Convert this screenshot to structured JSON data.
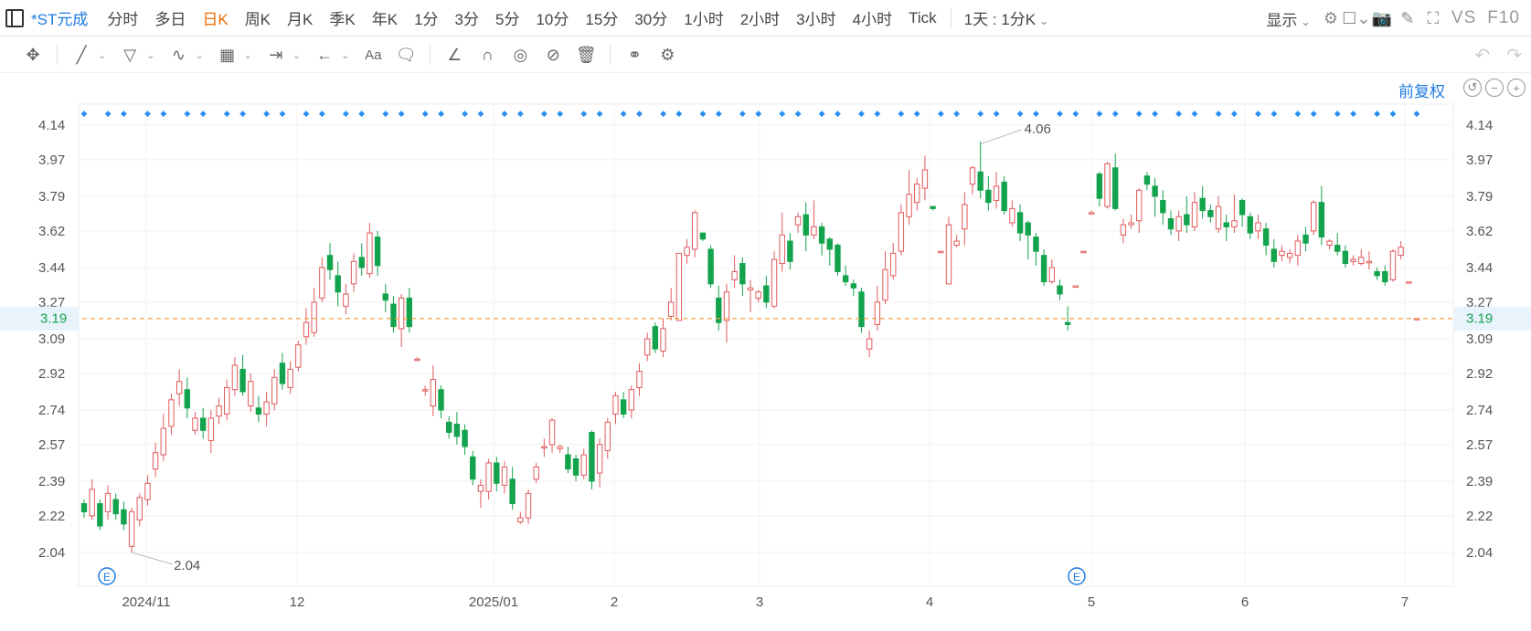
{
  "toolbar": {
    "stock_name": "*ST元成",
    "periods": [
      "分时",
      "多日",
      "日K",
      "周K",
      "月K",
      "季K",
      "年K",
      "1分",
      "3分",
      "5分",
      "10分",
      "15分",
      "30分",
      "1小时",
      "2小时",
      "3小时",
      "4小时",
      "Tick"
    ],
    "active_period": "日K",
    "range_select": "1天 : 1分K",
    "display_menu": "显示",
    "vs_label": "VS",
    "f10_label": "F10"
  },
  "draw_tools": [
    "move-icon",
    "line-icon",
    "channel-icon",
    "wave-icon",
    "fib-icon",
    "measure-icon",
    "arrow-icon",
    "text-icon",
    "note-icon",
    "pen-icon",
    "magnet-icon",
    "eye-icon",
    "hide-icon",
    "trash-icon",
    "compare-icon",
    "settings-icon"
  ],
  "adjust_label": "前复权",
  "colors": {
    "up": "#e15a5a",
    "down": "#13a34c",
    "accent": "#1e7be0",
    "period_active": "#ef6c00",
    "ref_line": "#f0a040",
    "marker": "#2a8ef0"
  },
  "chart_data": {
    "type": "candlestick",
    "y_ticks": [
      4.14,
      3.97,
      3.79,
      3.62,
      3.44,
      3.27,
      3.09,
      2.92,
      2.74,
      2.57,
      2.39,
      2.22,
      2.04
    ],
    "ylim": [
      2.04,
      4.14
    ],
    "current_price": "3.19",
    "x_ticks": [
      "2024/11",
      "12",
      "2025/01",
      "2",
      "3",
      "4",
      "5",
      "6",
      "7"
    ],
    "high_label": "4.06",
    "low_label": "2.04",
    "event_marker": "E",
    "candles": [
      [
        2.28,
        2.24,
        2.3,
        2.21
      ],
      [
        2.22,
        2.35,
        2.4,
        2.2
      ],
      [
        2.28,
        2.17,
        2.3,
        2.15
      ],
      [
        2.24,
        2.33,
        2.37,
        2.2
      ],
      [
        2.3,
        2.23,
        2.33,
        2.2
      ],
      [
        2.25,
        2.18,
        2.29,
        2.15
      ],
      [
        2.07,
        2.24,
        2.26,
        2.04
      ],
      [
        2.2,
        2.31,
        2.33,
        2.17
      ],
      [
        2.3,
        2.38,
        2.42,
        2.27
      ],
      [
        2.45,
        2.53,
        2.58,
        2.41
      ],
      [
        2.52,
        2.65,
        2.72,
        2.49
      ],
      [
        2.66,
        2.79,
        2.82,
        2.62
      ],
      [
        2.82,
        2.88,
        2.94,
        2.76
      ],
      [
        2.84,
        2.75,
        2.9,
        2.7
      ],
      [
        2.64,
        2.7,
        2.73,
        2.62
      ],
      [
        2.7,
        2.64,
        2.75,
        2.6
      ],
      [
        2.59,
        2.7,
        2.74,
        2.53
      ],
      [
        2.71,
        2.76,
        2.8,
        2.67
      ],
      [
        2.72,
        2.85,
        2.89,
        2.69
      ],
      [
        2.84,
        2.96,
        3.0,
        2.81
      ],
      [
        2.94,
        2.83,
        3.01,
        2.81
      ],
      [
        2.76,
        2.88,
        2.92,
        2.73
      ],
      [
        2.75,
        2.72,
        2.81,
        2.68
      ],
      [
        2.72,
        2.78,
        2.83,
        2.66
      ],
      [
        2.77,
        2.9,
        2.94,
        2.74
      ],
      [
        2.97,
        2.87,
        3.02,
        2.84
      ],
      [
        2.85,
        2.94,
        2.98,
        2.82
      ],
      [
        2.95,
        3.06,
        3.08,
        2.93
      ],
      [
        3.1,
        3.17,
        3.24,
        3.06
      ],
      [
        3.12,
        3.27,
        3.34,
        3.1
      ],
      [
        3.29,
        3.44,
        3.49,
        3.27
      ],
      [
        3.5,
        3.43,
        3.56,
        3.38
      ],
      [
        3.4,
        3.32,
        3.47,
        3.25
      ],
      [
        3.25,
        3.31,
        3.36,
        3.21
      ],
      [
        3.36,
        3.47,
        3.51,
        3.32
      ],
      [
        3.49,
        3.44,
        3.56,
        3.4
      ],
      [
        3.41,
        3.61,
        3.66,
        3.39
      ],
      [
        3.59,
        3.45,
        3.62,
        3.4
      ],
      [
        3.31,
        3.28,
        3.36,
        3.22
      ],
      [
        3.26,
        3.15,
        3.3,
        3.12
      ],
      [
        3.14,
        3.29,
        3.31,
        3.05
      ],
      [
        3.29,
        3.15,
        3.34,
        3.12
      ],
      [
        2.99,
        2.99,
        3.0,
        2.98
      ],
      [
        2.84,
        2.84,
        2.86,
        2.81
      ],
      [
        2.76,
        2.89,
        2.96,
        2.71
      ],
      [
        2.84,
        2.74,
        2.86,
        2.7
      ],
      [
        2.68,
        2.63,
        2.71,
        2.6
      ],
      [
        2.67,
        2.61,
        2.73,
        2.57
      ],
      [
        2.64,
        2.56,
        2.67,
        2.52
      ],
      [
        2.51,
        2.4,
        2.54,
        2.37
      ],
      [
        2.34,
        2.37,
        2.4,
        2.26
      ],
      [
        2.34,
        2.48,
        2.5,
        2.3
      ],
      [
        2.48,
        2.38,
        2.51,
        2.34
      ],
      [
        2.37,
        2.46,
        2.49,
        2.33
      ],
      [
        2.4,
        2.28,
        2.46,
        2.25
      ],
      [
        2.19,
        2.21,
        2.24,
        2.18
      ],
      [
        2.21,
        2.33,
        2.35,
        2.18
      ],
      [
        2.4,
        2.46,
        2.48,
        2.38
      ],
      [
        2.56,
        2.56,
        2.6,
        2.51
      ],
      [
        2.57,
        2.69,
        2.7,
        2.53
      ],
      [
        2.55,
        2.56,
        2.57,
        2.53
      ],
      [
        2.52,
        2.45,
        2.56,
        2.43
      ],
      [
        2.5,
        2.42,
        2.52,
        2.39
      ],
      [
        2.42,
        2.52,
        2.55,
        2.4
      ],
      [
        2.63,
        2.39,
        2.64,
        2.35
      ],
      [
        2.43,
        2.57,
        2.6,
        2.36
      ],
      [
        2.54,
        2.68,
        2.7,
        2.5
      ],
      [
        2.72,
        2.81,
        2.83,
        2.67
      ],
      [
        2.79,
        2.72,
        2.83,
        2.7
      ],
      [
        2.74,
        2.84,
        2.86,
        2.7
      ],
      [
        2.85,
        2.93,
        2.97,
        2.81
      ],
      [
        3.01,
        3.09,
        3.12,
        2.98
      ],
      [
        3.15,
        3.04,
        3.17,
        3.02
      ],
      [
        3.03,
        3.14,
        3.19,
        3.0
      ],
      [
        3.2,
        3.27,
        3.34,
        3.18
      ],
      [
        3.18,
        3.51,
        3.51,
        3.18
      ],
      [
        3.5,
        3.54,
        3.58,
        3.46
      ],
      [
        3.53,
        3.71,
        3.72,
        3.49
      ],
      [
        3.61,
        3.58,
        3.61,
        3.57
      ],
      [
        3.53,
        3.36,
        3.55,
        3.34
      ],
      [
        3.29,
        3.17,
        3.35,
        3.13
      ],
      [
        3.18,
        3.32,
        3.36,
        3.07
      ],
      [
        3.38,
        3.42,
        3.5,
        3.34
      ],
      [
        3.46,
        3.36,
        3.49,
        3.3
      ],
      [
        3.33,
        3.34,
        3.38,
        3.22
      ],
      [
        3.29,
        3.32,
        3.33,
        3.27
      ],
      [
        3.35,
        3.27,
        3.4,
        3.24
      ],
      [
        3.25,
        3.48,
        3.52,
        3.24
      ],
      [
        3.46,
        3.6,
        3.71,
        3.42
      ],
      [
        3.57,
        3.47,
        3.61,
        3.43
      ],
      [
        3.65,
        3.69,
        3.71,
        3.61
      ],
      [
        3.7,
        3.6,
        3.76,
        3.52
      ],
      [
        3.6,
        3.64,
        3.77,
        3.58
      ],
      [
        3.64,
        3.56,
        3.66,
        3.5
      ],
      [
        3.58,
        3.53,
        3.59,
        3.45
      ],
      [
        3.55,
        3.42,
        3.56,
        3.4
      ],
      [
        3.4,
        3.37,
        3.45,
        3.35
      ],
      [
        3.36,
        3.34,
        3.38,
        3.3
      ],
      [
        3.32,
        3.15,
        3.34,
        3.12
      ],
      [
        3.04,
        3.09,
        3.13,
        3.0
      ],
      [
        3.16,
        3.27,
        3.35,
        3.13
      ],
      [
        3.28,
        3.43,
        3.52,
        3.26
      ],
      [
        3.4,
        3.51,
        3.56,
        3.38
      ],
      [
        3.52,
        3.71,
        3.75,
        3.5
      ],
      [
        3.69,
        3.8,
        3.92,
        3.65
      ],
      [
        3.76,
        3.85,
        3.88,
        3.72
      ],
      [
        3.83,
        3.92,
        3.99,
        3.77
      ],
      [
        3.74,
        3.73,
        3.74,
        3.72
      ],
      [
        3.52,
        3.52,
        3.52,
        3.52
      ],
      [
        3.36,
        3.65,
        3.69,
        3.36
      ],
      [
        3.55,
        3.57,
        3.6,
        3.54
      ],
      [
        3.63,
        3.75,
        3.81,
        3.55
      ],
      [
        3.85,
        3.93,
        3.94,
        3.8
      ],
      [
        3.91,
        3.82,
        4.06,
        3.78
      ],
      [
        3.82,
        3.76,
        3.89,
        3.72
      ],
      [
        3.77,
        3.84,
        3.91,
        3.73
      ],
      [
        3.86,
        3.72,
        3.89,
        3.7
      ],
      [
        3.66,
        3.73,
        3.77,
        3.64
      ],
      [
        3.71,
        3.61,
        3.75,
        3.57
      ],
      [
        3.66,
        3.6,
        3.67,
        3.48
      ],
      [
        3.59,
        3.52,
        3.61,
        3.45
      ],
      [
        3.5,
        3.37,
        3.53,
        3.35
      ],
      [
        3.37,
        3.44,
        3.48,
        3.36
      ],
      [
        3.35,
        3.31,
        3.38,
        3.28
      ],
      [
        3.17,
        3.16,
        3.25,
        3.13
      ],
      [
        3.35,
        3.35,
        3.35,
        3.35
      ],
      [
        3.52,
        3.52,
        3.52,
        3.52
      ],
      [
        3.71,
        3.71,
        3.72,
        3.7
      ],
      [
        3.9,
        3.78,
        3.91,
        3.74
      ],
      [
        3.74,
        3.95,
        3.96,
        3.73
      ],
      [
        3.93,
        3.73,
        4.0,
        3.72
      ],
      [
        3.6,
        3.65,
        3.68,
        3.56
      ],
      [
        3.65,
        3.66,
        3.7,
        3.63
      ],
      [
        3.67,
        3.82,
        3.83,
        3.61
      ],
      [
        3.89,
        3.85,
        3.91,
        3.82
      ],
      [
        3.84,
        3.79,
        3.88,
        3.69
      ],
      [
        3.77,
        3.71,
        3.82,
        3.65
      ],
      [
        3.68,
        3.63,
        3.72,
        3.6
      ],
      [
        3.62,
        3.69,
        3.72,
        3.57
      ],
      [
        3.7,
        3.65,
        3.79,
        3.61
      ],
      [
        3.64,
        3.76,
        3.81,
        3.62
      ],
      [
        3.78,
        3.72,
        3.84,
        3.68
      ],
      [
        3.72,
        3.69,
        3.75,
        3.66
      ],
      [
        3.63,
        3.74,
        3.79,
        3.61
      ],
      [
        3.66,
        3.64,
        3.7,
        3.57
      ],
      [
        3.64,
        3.67,
        3.8,
        3.61
      ],
      [
        3.77,
        3.7,
        3.78,
        3.64
      ],
      [
        3.69,
        3.61,
        3.71,
        3.58
      ],
      [
        3.62,
        3.66,
        3.7,
        3.58
      ],
      [
        3.63,
        3.55,
        3.66,
        3.5
      ],
      [
        3.53,
        3.47,
        3.58,
        3.44
      ],
      [
        3.5,
        3.52,
        3.55,
        3.47
      ],
      [
        3.49,
        3.51,
        3.53,
        3.46
      ],
      [
        3.5,
        3.57,
        3.6,
        3.45
      ],
      [
        3.6,
        3.56,
        3.64,
        3.52
      ],
      [
        3.62,
        3.76,
        3.77,
        3.6
      ],
      [
        3.76,
        3.59,
        3.84,
        3.55
      ],
      [
        3.55,
        3.57,
        3.58,
        3.53
      ],
      [
        3.55,
        3.52,
        3.61,
        3.5
      ],
      [
        3.52,
        3.46,
        3.55,
        3.44
      ],
      [
        3.47,
        3.48,
        3.5,
        3.45
      ],
      [
        3.46,
        3.49,
        3.53,
        3.45
      ],
      [
        3.47,
        3.47,
        3.52,
        3.43
      ],
      [
        3.42,
        3.4,
        3.44,
        3.38
      ],
      [
        3.42,
        3.37,
        3.45,
        3.35
      ],
      [
        3.38,
        3.52,
        3.53,
        3.37
      ],
      [
        3.5,
        3.54,
        3.57,
        3.48
      ],
      [
        3.37,
        3.37,
        3.37,
        3.37
      ],
      [
        3.19,
        3.19,
        3.19,
        3.18
      ]
    ]
  }
}
